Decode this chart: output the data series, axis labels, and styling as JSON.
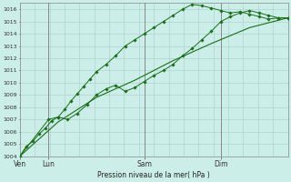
{
  "title": "Pression niveau de la mer( hPa )",
  "bg_color": "#cceee8",
  "grid_color": "#aacccc",
  "line_color": "#1a6e1a",
  "ylim": [
    1004,
    1016.5
  ],
  "ytick_min": 1004,
  "ytick_max": 1016,
  "ytick_step": 1,
  "day_labels": [
    "Ven",
    "Lun",
    "Sam",
    "Dim"
  ],
  "day_positions": [
    0,
    18,
    78,
    126
  ],
  "total_hours": 168,
  "series1_x": [
    0,
    4,
    8,
    12,
    16,
    20,
    24,
    28,
    32,
    36,
    40,
    44,
    48,
    54,
    60,
    66,
    72,
    78,
    84,
    90,
    96,
    102,
    108,
    114,
    120,
    126,
    132,
    138,
    144,
    150,
    156,
    162,
    168
  ],
  "series1_y": [
    1004.0,
    1004.8,
    1005.2,
    1005.8,
    1006.3,
    1006.9,
    1007.2,
    1007.8,
    1008.5,
    1009.1,
    1009.7,
    1010.3,
    1010.9,
    1011.5,
    1012.2,
    1013.0,
    1013.5,
    1014.0,
    1014.5,
    1015.0,
    1015.5,
    1016.0,
    1016.4,
    1016.3,
    1016.1,
    1015.9,
    1015.7,
    1015.8,
    1015.6,
    1015.4,
    1015.2,
    1015.3,
    1015.3
  ],
  "series2_x": [
    0,
    18,
    24,
    30,
    36,
    42,
    48,
    54,
    60,
    66,
    72,
    78,
    84,
    90,
    96,
    102,
    108,
    114,
    120,
    126,
    132,
    138,
    144,
    150,
    156,
    162,
    168
  ],
  "series2_y": [
    1004.0,
    1007.0,
    1007.2,
    1007.0,
    1007.5,
    1008.2,
    1009.0,
    1009.5,
    1009.8,
    1009.3,
    1009.6,
    1010.1,
    1010.6,
    1011.0,
    1011.5,
    1012.2,
    1012.8,
    1013.5,
    1014.2,
    1015.0,
    1015.4,
    1015.7,
    1015.9,
    1015.7,
    1015.5,
    1015.3,
    1015.3
  ],
  "series3_x": [
    0,
    24,
    48,
    72,
    96,
    120,
    144,
    168
  ],
  "series3_y": [
    1004.0,
    1006.8,
    1008.8,
    1010.2,
    1011.8,
    1013.2,
    1014.5,
    1015.3
  ]
}
